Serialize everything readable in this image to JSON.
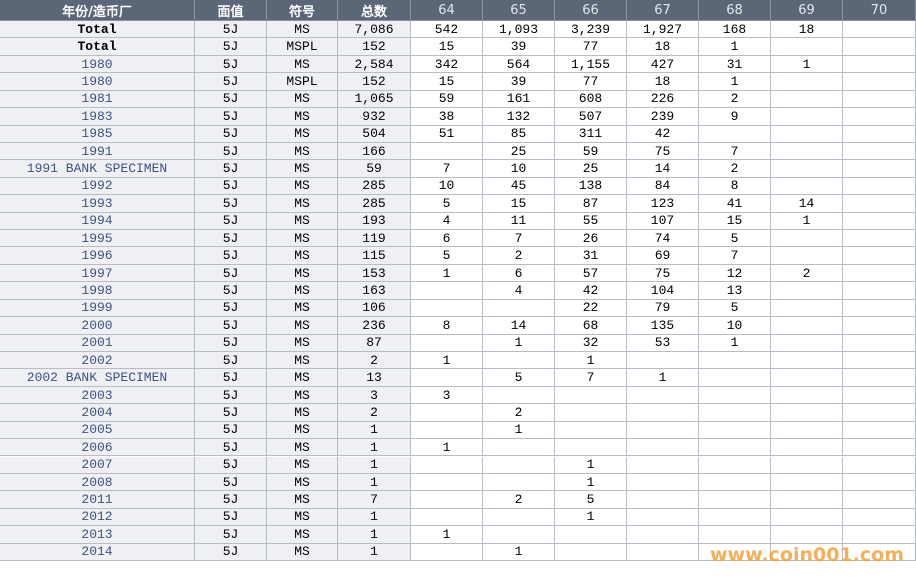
{
  "table": {
    "header": [
      "年份/造币厂",
      "面值",
      "符号",
      "总数",
      "64",
      "65",
      "66",
      "67",
      "68",
      "69",
      "70"
    ],
    "rows": [
      [
        "Total",
        "5J",
        "MS",
        "7,086",
        "542",
        "1,093",
        "3,239",
        "1,927",
        "168",
        "18",
        null
      ],
      [
        "Total",
        "5J",
        "MSPL",
        "152",
        "15",
        "39",
        "77",
        "18",
        "1",
        null,
        null
      ],
      [
        "1980",
        "5J",
        "MS",
        "2,584",
        "342",
        "564",
        "1,155",
        "427",
        "31",
        "1",
        null
      ],
      [
        "1980",
        "5J",
        "MSPL",
        "152",
        "15",
        "39",
        "77",
        "18",
        "1",
        null,
        null
      ],
      [
        "1981",
        "5J",
        "MS",
        "1,065",
        "59",
        "161",
        "608",
        "226",
        "2",
        null,
        null
      ],
      [
        "1983",
        "5J",
        "MS",
        "932",
        "38",
        "132",
        "507",
        "239",
        "9",
        null,
        null
      ],
      [
        "1985",
        "5J",
        "MS",
        "504",
        "51",
        "85",
        "311",
        "42",
        null,
        null,
        null
      ],
      [
        "1991",
        "5J",
        "MS",
        "166",
        null,
        "25",
        "59",
        "75",
        "7",
        null,
        null
      ],
      [
        "1991 BANK SPECIMEN",
        "5J",
        "MS",
        "59",
        "7",
        "10",
        "25",
        "14",
        "2",
        null,
        null
      ],
      [
        "1992",
        "5J",
        "MS",
        "285",
        "10",
        "45",
        "138",
        "84",
        "8",
        null,
        null
      ],
      [
        "1993",
        "5J",
        "MS",
        "285",
        "5",
        "15",
        "87",
        "123",
        "41",
        "14",
        null
      ],
      [
        "1994",
        "5J",
        "MS",
        "193",
        "4",
        "11",
        "55",
        "107",
        "15",
        "1",
        null
      ],
      [
        "1995",
        "5J",
        "MS",
        "119",
        "6",
        "7",
        "26",
        "74",
        "5",
        null,
        null
      ],
      [
        "1996",
        "5J",
        "MS",
        "115",
        "5",
        "2",
        "31",
        "69",
        "7",
        null,
        null
      ],
      [
        "1997",
        "5J",
        "MS",
        "153",
        "1",
        "6",
        "57",
        "75",
        "12",
        "2",
        null
      ],
      [
        "1998",
        "5J",
        "MS",
        "163",
        null,
        "4",
        "42",
        "104",
        "13",
        null,
        null
      ],
      [
        "1999",
        "5J",
        "MS",
        "106",
        null,
        null,
        "22",
        "79",
        "5",
        null,
        null
      ],
      [
        "2000",
        "5J",
        "MS",
        "236",
        "8",
        "14",
        "68",
        "135",
        "10",
        null,
        null
      ],
      [
        "2001",
        "5J",
        "MS",
        "87",
        null,
        "1",
        "32",
        "53",
        "1",
        null,
        null
      ],
      [
        "2002",
        "5J",
        "MS",
        "2",
        "1",
        null,
        "1",
        null,
        null,
        null,
        null
      ],
      [
        "2002 BANK SPECIMEN",
        "5J",
        "MS",
        "13",
        null,
        "5",
        "7",
        "1",
        null,
        null,
        null
      ],
      [
        "2003",
        "5J",
        "MS",
        "3",
        "3",
        null,
        null,
        null,
        null,
        null,
        null
      ],
      [
        "2004",
        "5J",
        "MS",
        "2",
        null,
        "2",
        null,
        null,
        null,
        null,
        null
      ],
      [
        "2005",
        "5J",
        "MS",
        "1",
        null,
        "1",
        null,
        null,
        null,
        null,
        null
      ],
      [
        "2006",
        "5J",
        "MS",
        "1",
        "1",
        null,
        null,
        null,
        null,
        null,
        null
      ],
      [
        "2007",
        "5J",
        "MS",
        "1",
        null,
        null,
        "1",
        null,
        null,
        null,
        null
      ],
      [
        "2008",
        "5J",
        "MS",
        "1",
        null,
        null,
        "1",
        null,
        null,
        null,
        null
      ],
      [
        "2011",
        "5J",
        "MS",
        "7",
        null,
        "2",
        "5",
        null,
        null,
        null,
        null
      ],
      [
        "2012",
        "5J",
        "MS",
        "1",
        null,
        null,
        "1",
        null,
        null,
        null,
        null
      ],
      [
        "2013",
        "5J",
        "MS",
        "1",
        "1",
        null,
        null,
        null,
        null,
        null,
        null
      ],
      [
        "2014",
        "5J",
        "MS",
        "1",
        null,
        "1",
        null,
        null,
        null,
        null,
        null
      ]
    ]
  },
  "watermark": "www.coin001.com"
}
